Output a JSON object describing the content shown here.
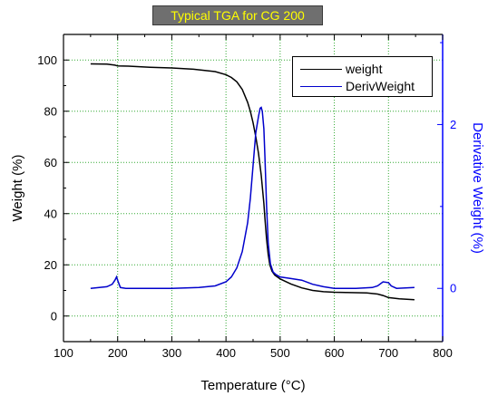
{
  "title": "Typical TGA for CG 200",
  "legend": {
    "weight_label": "weight",
    "deriv_label": "DerivWeight"
  },
  "colors": {
    "weight": "#000000",
    "deriv": "#0000cc",
    "right_axis": "#0000ff",
    "grid": "#33aa33",
    "title_bg": "#6f6f6f",
    "title_text": "#ffff00"
  },
  "chart_data": {
    "type": "line",
    "title": "Typical TGA for CG 200",
    "xlabel": "Temperature (°C)",
    "ylabel": "Weight (%)",
    "y2label": "Derivative Weight (%)",
    "xlim": [
      100,
      800
    ],
    "ylim": [
      -10,
      110
    ],
    "y2lim": [
      -0.65,
      3.1
    ],
    "x_ticks": [
      "100",
      "200",
      "300",
      "400",
      "500",
      "600",
      "700",
      "800"
    ],
    "y_ticks": [
      "0",
      "20",
      "40",
      "60",
      "80",
      "100"
    ],
    "y2_ticks": [
      "0",
      "2"
    ],
    "grid": true,
    "legend_position": "top-right",
    "series": [
      {
        "name": "weight",
        "axis": "left",
        "x": [
          150,
          180,
          195,
          200,
          220,
          260,
          300,
          340,
          380,
          400,
          410,
          420,
          430,
          440,
          445,
          450,
          455,
          460,
          465,
          470,
          472,
          475,
          478,
          481,
          485,
          490,
          500,
          520,
          540,
          560,
          580,
          600,
          620,
          640,
          660,
          680,
          690,
          700,
          720,
          748
        ],
        "values": [
          98.5,
          98.4,
          98.0,
          97.7,
          97.6,
          97.2,
          96.9,
          96.4,
          95.5,
          94.3,
          93.2,
          91.5,
          88.5,
          83.5,
          80.0,
          75.5,
          70.0,
          63.5,
          55.0,
          44.0,
          38.0,
          30.0,
          24.0,
          20.0,
          17.5,
          16.0,
          14.5,
          12.5,
          11.0,
          10.0,
          9.5,
          9.3,
          9.2,
          9.1,
          9.0,
          8.6,
          8.0,
          7.2,
          6.7,
          6.4
        ]
      },
      {
        "name": "DerivWeight",
        "axis": "right",
        "x": [
          150,
          180,
          190,
          195,
          198,
          200,
          205,
          215,
          250,
          300,
          350,
          380,
          400,
          410,
          420,
          430,
          440,
          445,
          450,
          455,
          460,
          463,
          465,
          467,
          470,
          472,
          475,
          478,
          482,
          487,
          492,
          500,
          520,
          540,
          560,
          580,
          600,
          640,
          670,
          680,
          690,
          700,
          705,
          715,
          748
        ],
        "values": [
          0.0,
          0.02,
          0.05,
          0.1,
          0.14,
          0.1,
          0.01,
          0.0,
          0.0,
          0.0,
          0.01,
          0.03,
          0.08,
          0.14,
          0.25,
          0.45,
          0.8,
          1.1,
          1.5,
          1.9,
          2.1,
          2.2,
          2.21,
          2.16,
          1.95,
          1.6,
          1.0,
          0.55,
          0.3,
          0.2,
          0.17,
          0.14,
          0.12,
          0.1,
          0.05,
          0.02,
          0.0,
          0.0,
          0.01,
          0.03,
          0.08,
          0.07,
          0.03,
          0.0,
          0.01
        ]
      }
    ]
  }
}
